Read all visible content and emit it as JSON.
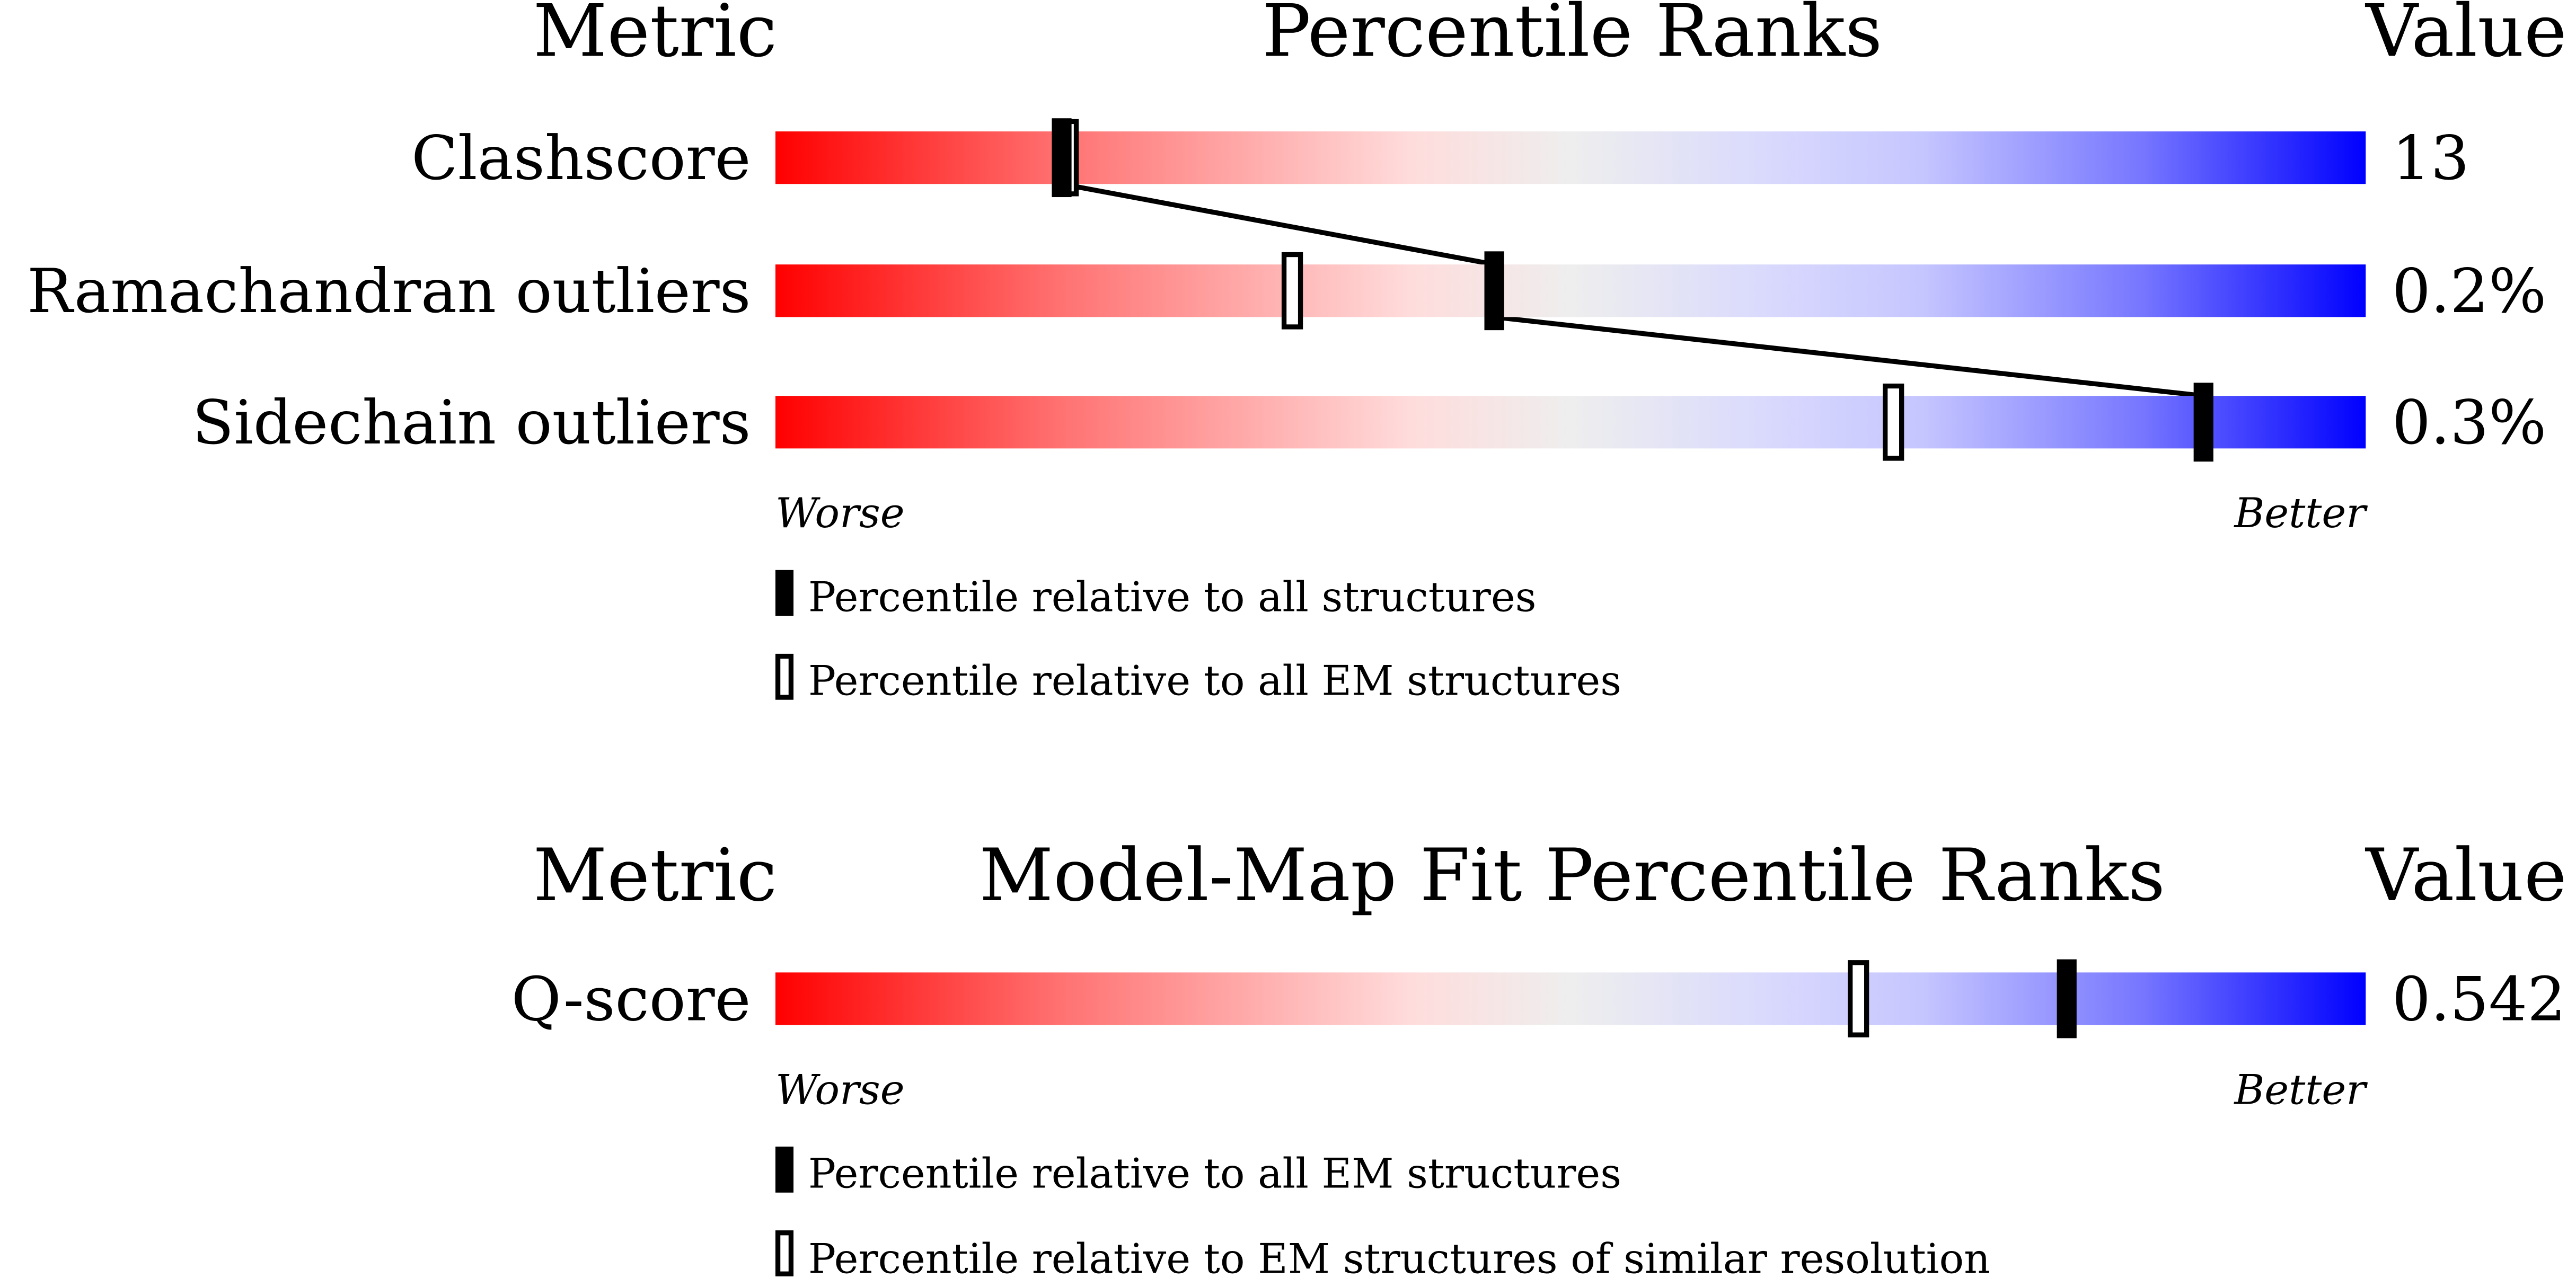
{
  "chart_data": [
    {
      "type": "bar",
      "title": "Percentile Ranks",
      "header_left": "Metric",
      "header_right": "Value",
      "xlim": [
        0,
        100
      ],
      "low_label": "Worse",
      "high_label": "Better",
      "metrics": [
        {
          "name": "Clashscore",
          "value": "13",
          "percentile_all": 18.0,
          "percentile_em": 18.4
        },
        {
          "name": "Ramachandran outliers",
          "value": "0.2%",
          "percentile_all": 45.2,
          "percentile_em": 32.5
        },
        {
          "name": "Sidechain outliers",
          "value": "0.3%",
          "percentile_all": 89.8,
          "percentile_em": 70.3
        }
      ],
      "legend": {
        "filled": "Percentile relative to all structures",
        "open": "Percentile relative to all EM structures"
      },
      "connect_filled": true
    },
    {
      "type": "bar",
      "title": "Model-Map Fit Percentile Ranks",
      "header_left": "Metric",
      "header_right": "Value",
      "xlim": [
        0,
        100
      ],
      "low_label": "Worse",
      "high_label": "Better",
      "metrics": [
        {
          "name": "Q-score",
          "value": "0.542",
          "percentile_all": 81.2,
          "percentile_em": 68.1
        }
      ],
      "legend": {
        "filled": "Percentile relative to all EM structures",
        "open": "Percentile relative to EM structures of similar resolution"
      },
      "connect_filled": false
    }
  ],
  "colors": {
    "worse": "#ff0000",
    "middle": "#eeeeee",
    "better": "#0000ff",
    "marker": "#000000"
  }
}
